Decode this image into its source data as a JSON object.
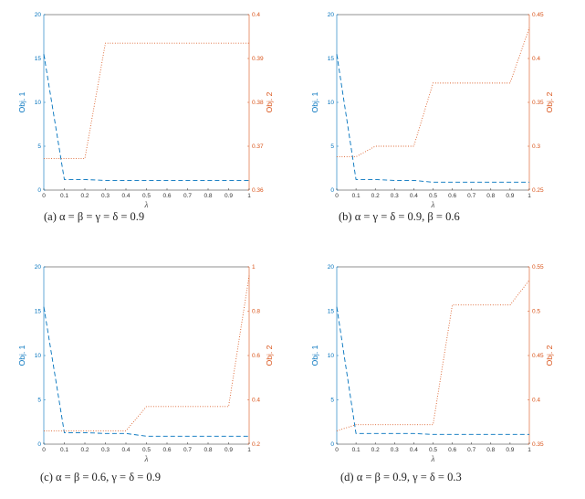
{
  "colors": {
    "obj1": "#0072BD",
    "obj2": "#D95319",
    "axis": "#262626"
  },
  "chart_data": [
    {
      "type": "line",
      "caption": "(a) α = β = γ = δ = 0.9",
      "xlabel": "λ",
      "ylabel_left": "Obj. 1",
      "ylabel_right": "Obj. 2",
      "xlim": [
        0,
        1
      ],
      "x_ticks": [
        "0",
        "0.1",
        "0.2",
        "0.3",
        "0.4",
        "0.5",
        "0.6",
        "0.7",
        "0.8",
        "0.9",
        "1"
      ],
      "ylim_left": [
        0,
        20
      ],
      "y_left_ticks": [
        "0",
        "5",
        "10",
        "15",
        "20"
      ],
      "ylim_right": [
        0.36,
        0.4
      ],
      "y_right_ticks": [
        "0.36",
        "0.37",
        "0.38",
        "0.39",
        "0.4"
      ],
      "grid": false,
      "series": [
        {
          "axis": "left",
          "style": "dashed",
          "x": [
            0,
            0.1,
            0.2,
            0.3,
            0.4,
            0.5,
            0.6,
            0.7,
            0.8,
            0.9,
            1
          ],
          "values": [
            15.5,
            1.2,
            1.2,
            1.1,
            1.1,
            1.1,
            1.1,
            1.1,
            1.1,
            1.1,
            1.1
          ]
        },
        {
          "axis": "right",
          "style": "dotted",
          "x": [
            0,
            0.1,
            0.2,
            0.3,
            0.4,
            0.5,
            0.6,
            0.7,
            0.8,
            0.9,
            1
          ],
          "values": [
            0.3672,
            0.3672,
            0.3672,
            0.3935,
            0.3935,
            0.3935,
            0.3935,
            0.3935,
            0.3935,
            0.3935,
            0.3935
          ]
        }
      ]
    },
    {
      "type": "line",
      "caption": "(b) α = γ = δ = 0.9,  β = 0.6",
      "xlabel": "λ",
      "ylabel_left": "Obj. 1",
      "ylabel_right": "Obj. 2",
      "xlim": [
        0,
        1
      ],
      "x_ticks": [
        "0",
        "0.1",
        "0.2",
        "0.3",
        "0.4",
        "0.5",
        "0.6",
        "0.7",
        "0.8",
        "0.9",
        "1"
      ],
      "ylim_left": [
        0,
        20
      ],
      "y_left_ticks": [
        "0",
        "5",
        "10",
        "15",
        "20"
      ],
      "ylim_right": [
        0.25,
        0.45
      ],
      "y_right_ticks": [
        "0.25",
        "0.3",
        "0.35",
        "0.4",
        "0.45"
      ],
      "grid": false,
      "series": [
        {
          "axis": "left",
          "style": "dashed",
          "x": [
            0,
            0.1,
            0.2,
            0.3,
            0.4,
            0.5,
            0.6,
            0.7,
            0.8,
            0.9,
            1
          ],
          "values": [
            15.5,
            1.2,
            1.2,
            1.1,
            1.1,
            0.9,
            0.9,
            0.9,
            0.9,
            0.9,
            0.9
          ]
        },
        {
          "axis": "right",
          "style": "dotted",
          "x": [
            0,
            0.1,
            0.2,
            0.3,
            0.4,
            0.5,
            0.6,
            0.7,
            0.8,
            0.9,
            1
          ],
          "values": [
            0.288,
            0.288,
            0.3,
            0.3,
            0.3,
            0.372,
            0.372,
            0.372,
            0.372,
            0.372,
            0.435
          ]
        }
      ]
    },
    {
      "type": "line",
      "caption": "(c) α = β = 0.6,  γ = δ = 0.9",
      "xlabel": "λ",
      "ylabel_left": "Obj. 1",
      "ylabel_right": "Obj. 2",
      "xlim": [
        0,
        1
      ],
      "x_ticks": [
        "0",
        "0.1",
        "0.2",
        "0.3",
        "0.4",
        "0.5",
        "0.6",
        "0.7",
        "0.8",
        "0.9",
        "1"
      ],
      "ylim_left": [
        0,
        20
      ],
      "y_left_ticks": [
        "0",
        "5",
        "10",
        "15",
        "20"
      ],
      "ylim_right": [
        0.2,
        1
      ],
      "y_right_ticks": [
        "0.2",
        "0.4",
        "0.6",
        "0.8",
        "1"
      ],
      "grid": false,
      "series": [
        {
          "axis": "left",
          "style": "dashed",
          "x": [
            0,
            0.1,
            0.2,
            0.3,
            0.4,
            0.5,
            0.6,
            0.7,
            0.8,
            0.9,
            1
          ],
          "values": [
            15.5,
            1.3,
            1.3,
            1.2,
            1.2,
            0.9,
            0.9,
            0.9,
            0.9,
            0.9,
            0.9
          ]
        },
        {
          "axis": "right",
          "style": "dotted",
          "x": [
            0,
            0.1,
            0.2,
            0.3,
            0.4,
            0.5,
            0.6,
            0.7,
            0.8,
            0.9,
            1
          ],
          "values": [
            0.26,
            0.26,
            0.26,
            0.26,
            0.26,
            0.37,
            0.37,
            0.37,
            0.37,
            0.37,
            0.96
          ]
        }
      ]
    },
    {
      "type": "line",
      "caption": "(d) α = β = 0.9,  γ = δ = 0.3",
      "xlabel": "λ",
      "ylabel_left": "Obj. 1",
      "ylabel_right": "Obj. 2",
      "xlim": [
        0,
        1
      ],
      "x_ticks": [
        "0",
        "0.1",
        "0.2",
        "0.3",
        "0.4",
        "0.5",
        "0.6",
        "0.7",
        "0.8",
        "0.9",
        "1"
      ],
      "ylim_left": [
        0,
        20
      ],
      "y_left_ticks": [
        "0",
        "5",
        "10",
        "15",
        "20"
      ],
      "ylim_right": [
        0.35,
        0.55
      ],
      "y_right_ticks": [
        "0.35",
        "0.4",
        "0.45",
        "0.5",
        "0.55"
      ],
      "grid": false,
      "series": [
        {
          "axis": "left",
          "style": "dashed",
          "x": [
            0,
            0.1,
            0.2,
            0.3,
            0.4,
            0.5,
            0.6,
            0.7,
            0.8,
            0.9,
            1
          ],
          "values": [
            15.5,
            1.2,
            1.2,
            1.2,
            1.2,
            1.1,
            1.1,
            1.1,
            1.1,
            1.1,
            1.1
          ]
        },
        {
          "axis": "right",
          "style": "dotted",
          "x": [
            0,
            0.1,
            0.2,
            0.3,
            0.4,
            0.5,
            0.6,
            0.7,
            0.8,
            0.9,
            1
          ],
          "values": [
            0.365,
            0.372,
            0.372,
            0.372,
            0.372,
            0.372,
            0.507,
            0.507,
            0.507,
            0.507,
            0.535
          ]
        }
      ]
    }
  ]
}
